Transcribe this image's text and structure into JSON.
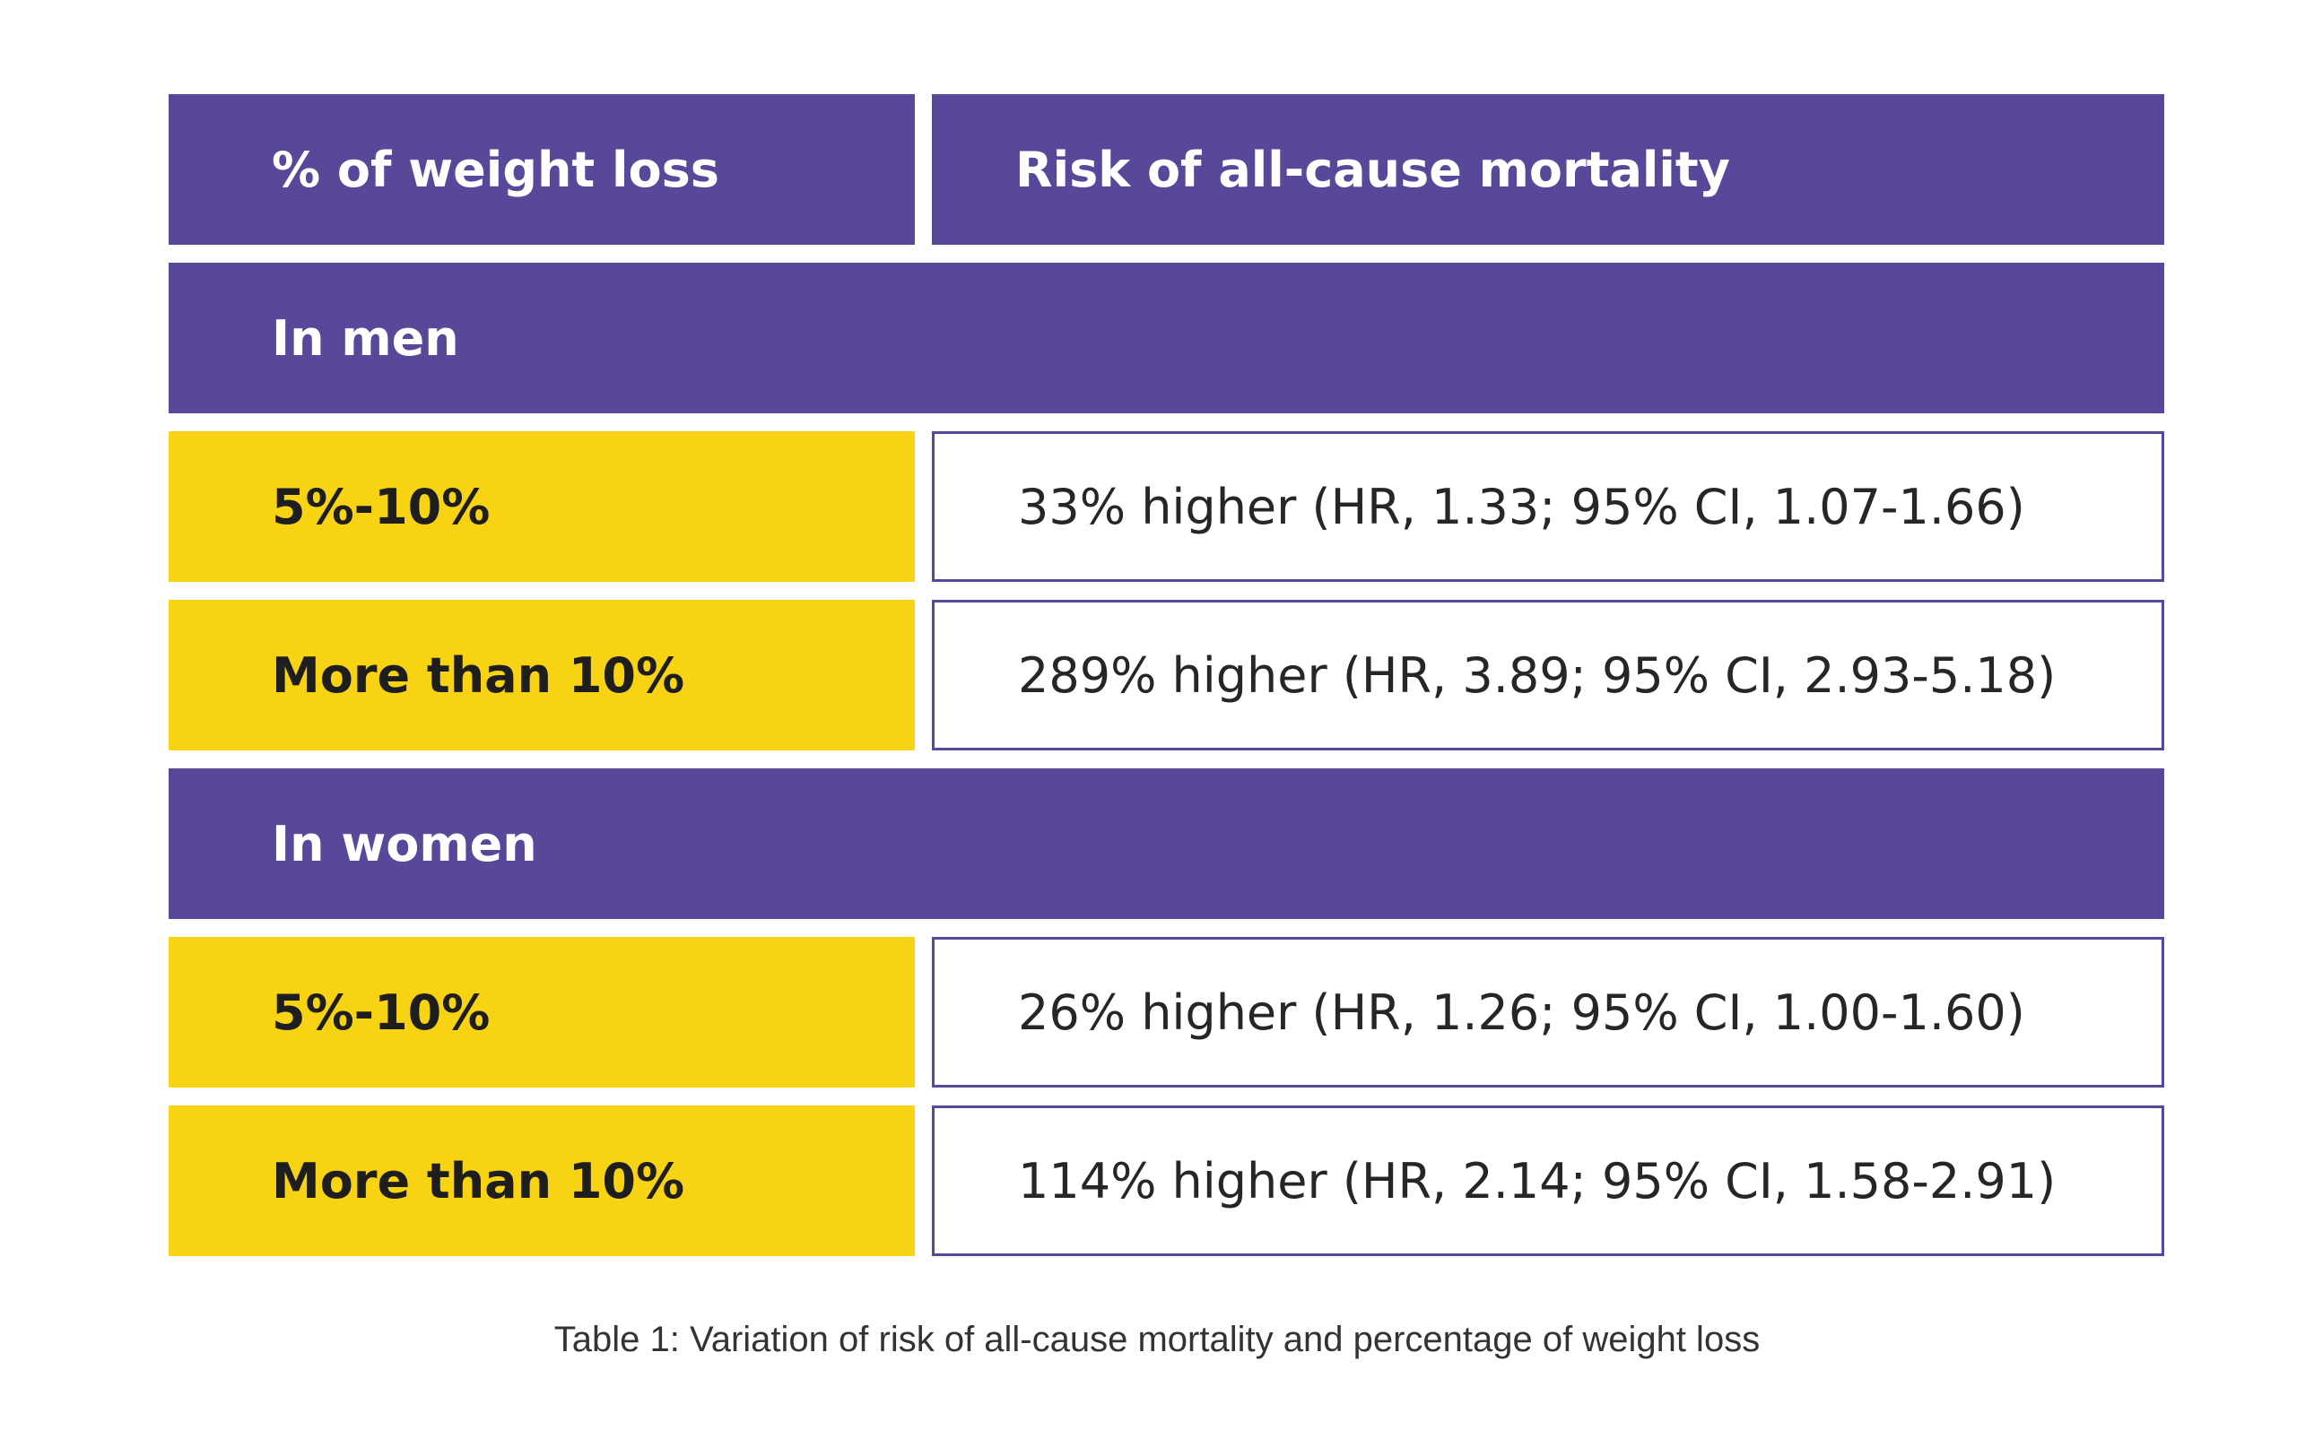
{
  "table": {
    "header": {
      "col1": "% of weight loss",
      "col2": "Risk of all-cause mortality"
    },
    "groups": [
      {
        "label": "In men",
        "rows": [
          {
            "weight_loss": "5%-10%",
            "risk": "33% higher (HR, 1.33; 95% CI, 1.07-1.66)"
          },
          {
            "weight_loss": "More than 10%",
            "risk": "289% higher (HR, 3.89; 95% CI, 2.93-5.18)"
          }
        ]
      },
      {
        "label": "In women",
        "rows": [
          {
            "weight_loss": "5%-10%",
            "risk": "26% higher (HR, 1.26; 95% CI, 1.00-1.60)"
          },
          {
            "weight_loss": "More than 10%",
            "risk": "114% higher (HR, 2.14; 95% CI, 1.58-2.91)"
          }
        ]
      }
    ]
  },
  "caption": "Table 1: Variation of risk of all-cause mortality and percentage of weight loss",
  "colors": {
    "purple": "#59489a",
    "yellow": "#f8d313"
  }
}
